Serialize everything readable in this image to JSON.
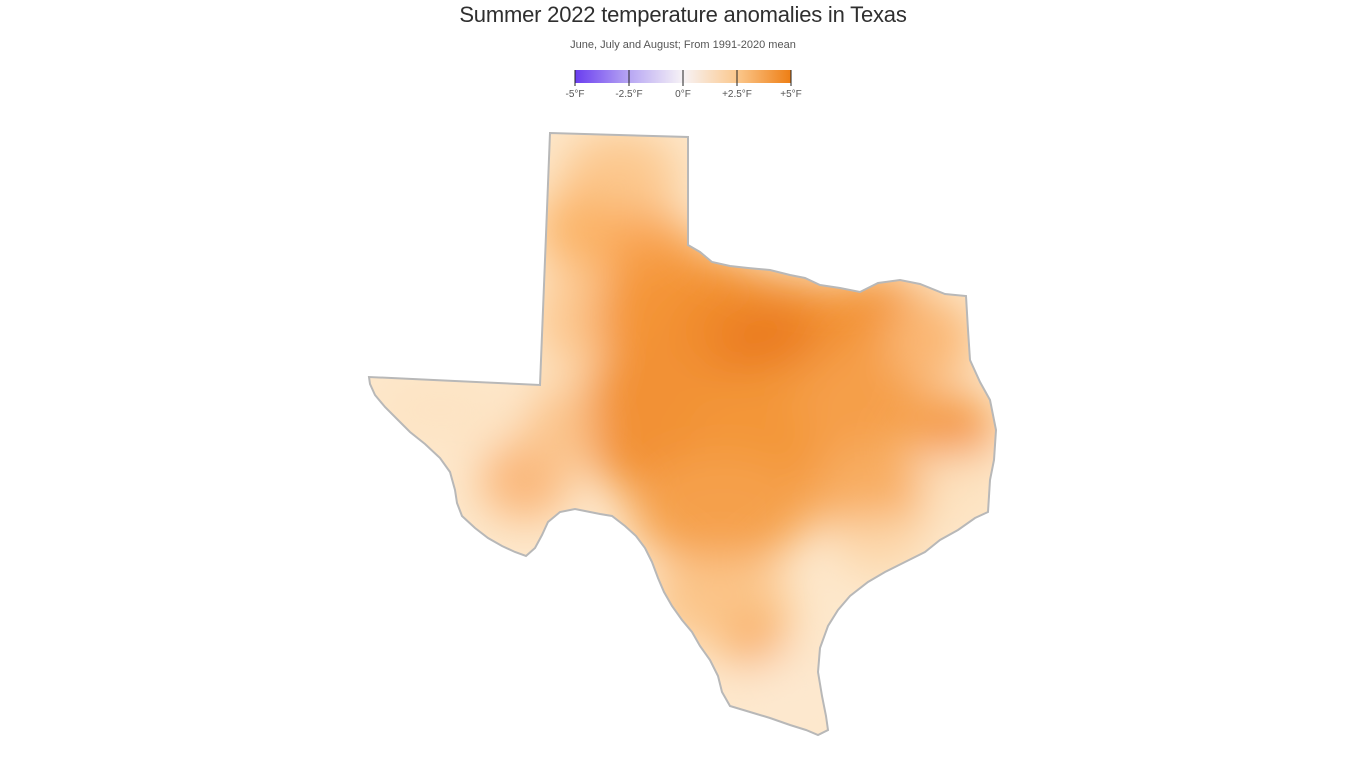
{
  "title": "Summer 2022 temperature anomalies in Texas",
  "subtitle": "June, July and August; From 1991-2020 mean",
  "legend": {
    "ticks": [
      "-5°F",
      "-2.5°F",
      "0°F",
      "+2.5°F",
      "+5°F"
    ],
    "values": [
      -5,
      -2.5,
      0,
      2.5,
      5
    ],
    "colors": [
      "#6a3df0",
      "#b7a6f3",
      "#f7f3f6",
      "#fbc88d",
      "#ee7e14"
    ]
  },
  "map": {
    "region": "Texas",
    "fill_base": "#fdebd2",
    "outline_color": "#bbbbbb"
  }
}
